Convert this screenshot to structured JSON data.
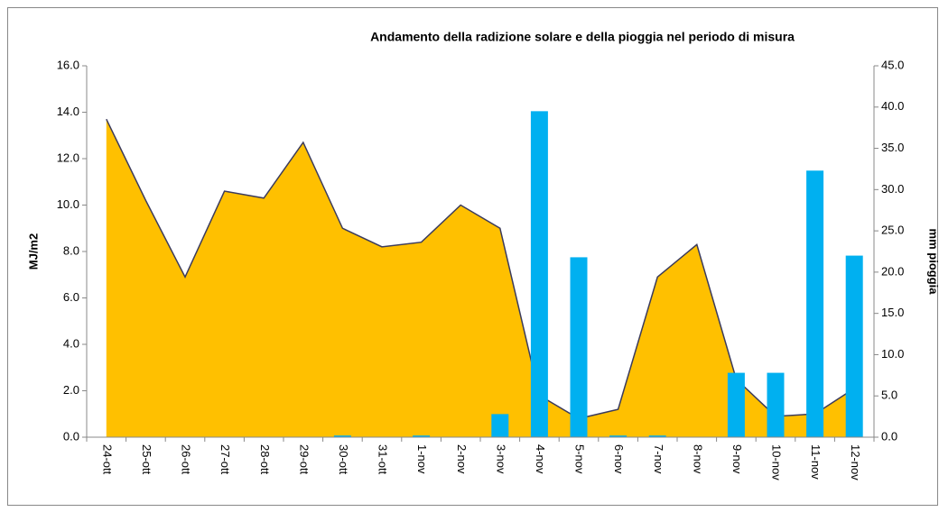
{
  "chart_data": {
    "type": "area_bar",
    "title": "Andamento della radizione solare e della pioggia nel periodo di misura",
    "ylabel": "MJ/m2",
    "y2label": "mm pioggia",
    "categories": [
      "24-ott",
      "25-ott",
      "26-ott",
      "27-ott",
      "28-ott",
      "29-ott",
      "30-ott",
      "31-ott",
      "1-nov",
      "2-nov",
      "3-nov",
      "4-nov",
      "5-nov",
      "6-nov",
      "7-nov",
      "8-nov",
      "9-nov",
      "10-nov",
      "11-nov",
      "12-nov"
    ],
    "series": [
      {
        "type": "area",
        "color": "#FFC000",
        "line_color": "#3b3b5c",
        "values": [
          13.7,
          10.2,
          6.9,
          10.6,
          10.3,
          12.7,
          9.0,
          8.2,
          8.4,
          10.0,
          9.0,
          1.8,
          0.8,
          1.2,
          6.9,
          8.3,
          2.5,
          0.9,
          1.0,
          2.1
        ]
      },
      {
        "type": "bar",
        "axis": "y2",
        "color": "#00B0F0",
        "values": [
          0,
          0,
          0,
          0,
          0,
          0,
          0.2,
          0,
          0.2,
          0,
          2.8,
          39.5,
          21.8,
          0.2,
          0.2,
          0,
          7.8,
          7.8,
          32.3,
          22.0
        ]
      }
    ],
    "ylim": [
      0,
      16
    ],
    "yticks": [
      {
        "value": 0,
        "label": "0.0"
      },
      {
        "value": 2,
        "label": "2.0"
      },
      {
        "value": 4,
        "label": "4.0"
      },
      {
        "value": 6,
        "label": "6.0"
      },
      {
        "value": 8,
        "label": "8.0"
      },
      {
        "value": 10,
        "label": "10.0"
      },
      {
        "value": 12,
        "label": "12.0"
      },
      {
        "value": 14,
        "label": "14.0"
      },
      {
        "value": 16,
        "label": "16.0"
      }
    ],
    "y2lim": [
      0,
      45
    ],
    "y2ticks": [
      {
        "value": 0,
        "label": "0.0"
      },
      {
        "value": 5,
        "label": "5.0"
      },
      {
        "value": 10,
        "label": "10.0"
      },
      {
        "value": 15,
        "label": "15.0"
      },
      {
        "value": 20,
        "label": "20.0"
      },
      {
        "value": 25,
        "label": "25.0"
      },
      {
        "value": 30,
        "label": "30.0"
      },
      {
        "value": 35,
        "label": "35.0"
      },
      {
        "value": 40,
        "label": "40.0"
      },
      {
        "value": 45,
        "label": "45.0"
      }
    ]
  }
}
